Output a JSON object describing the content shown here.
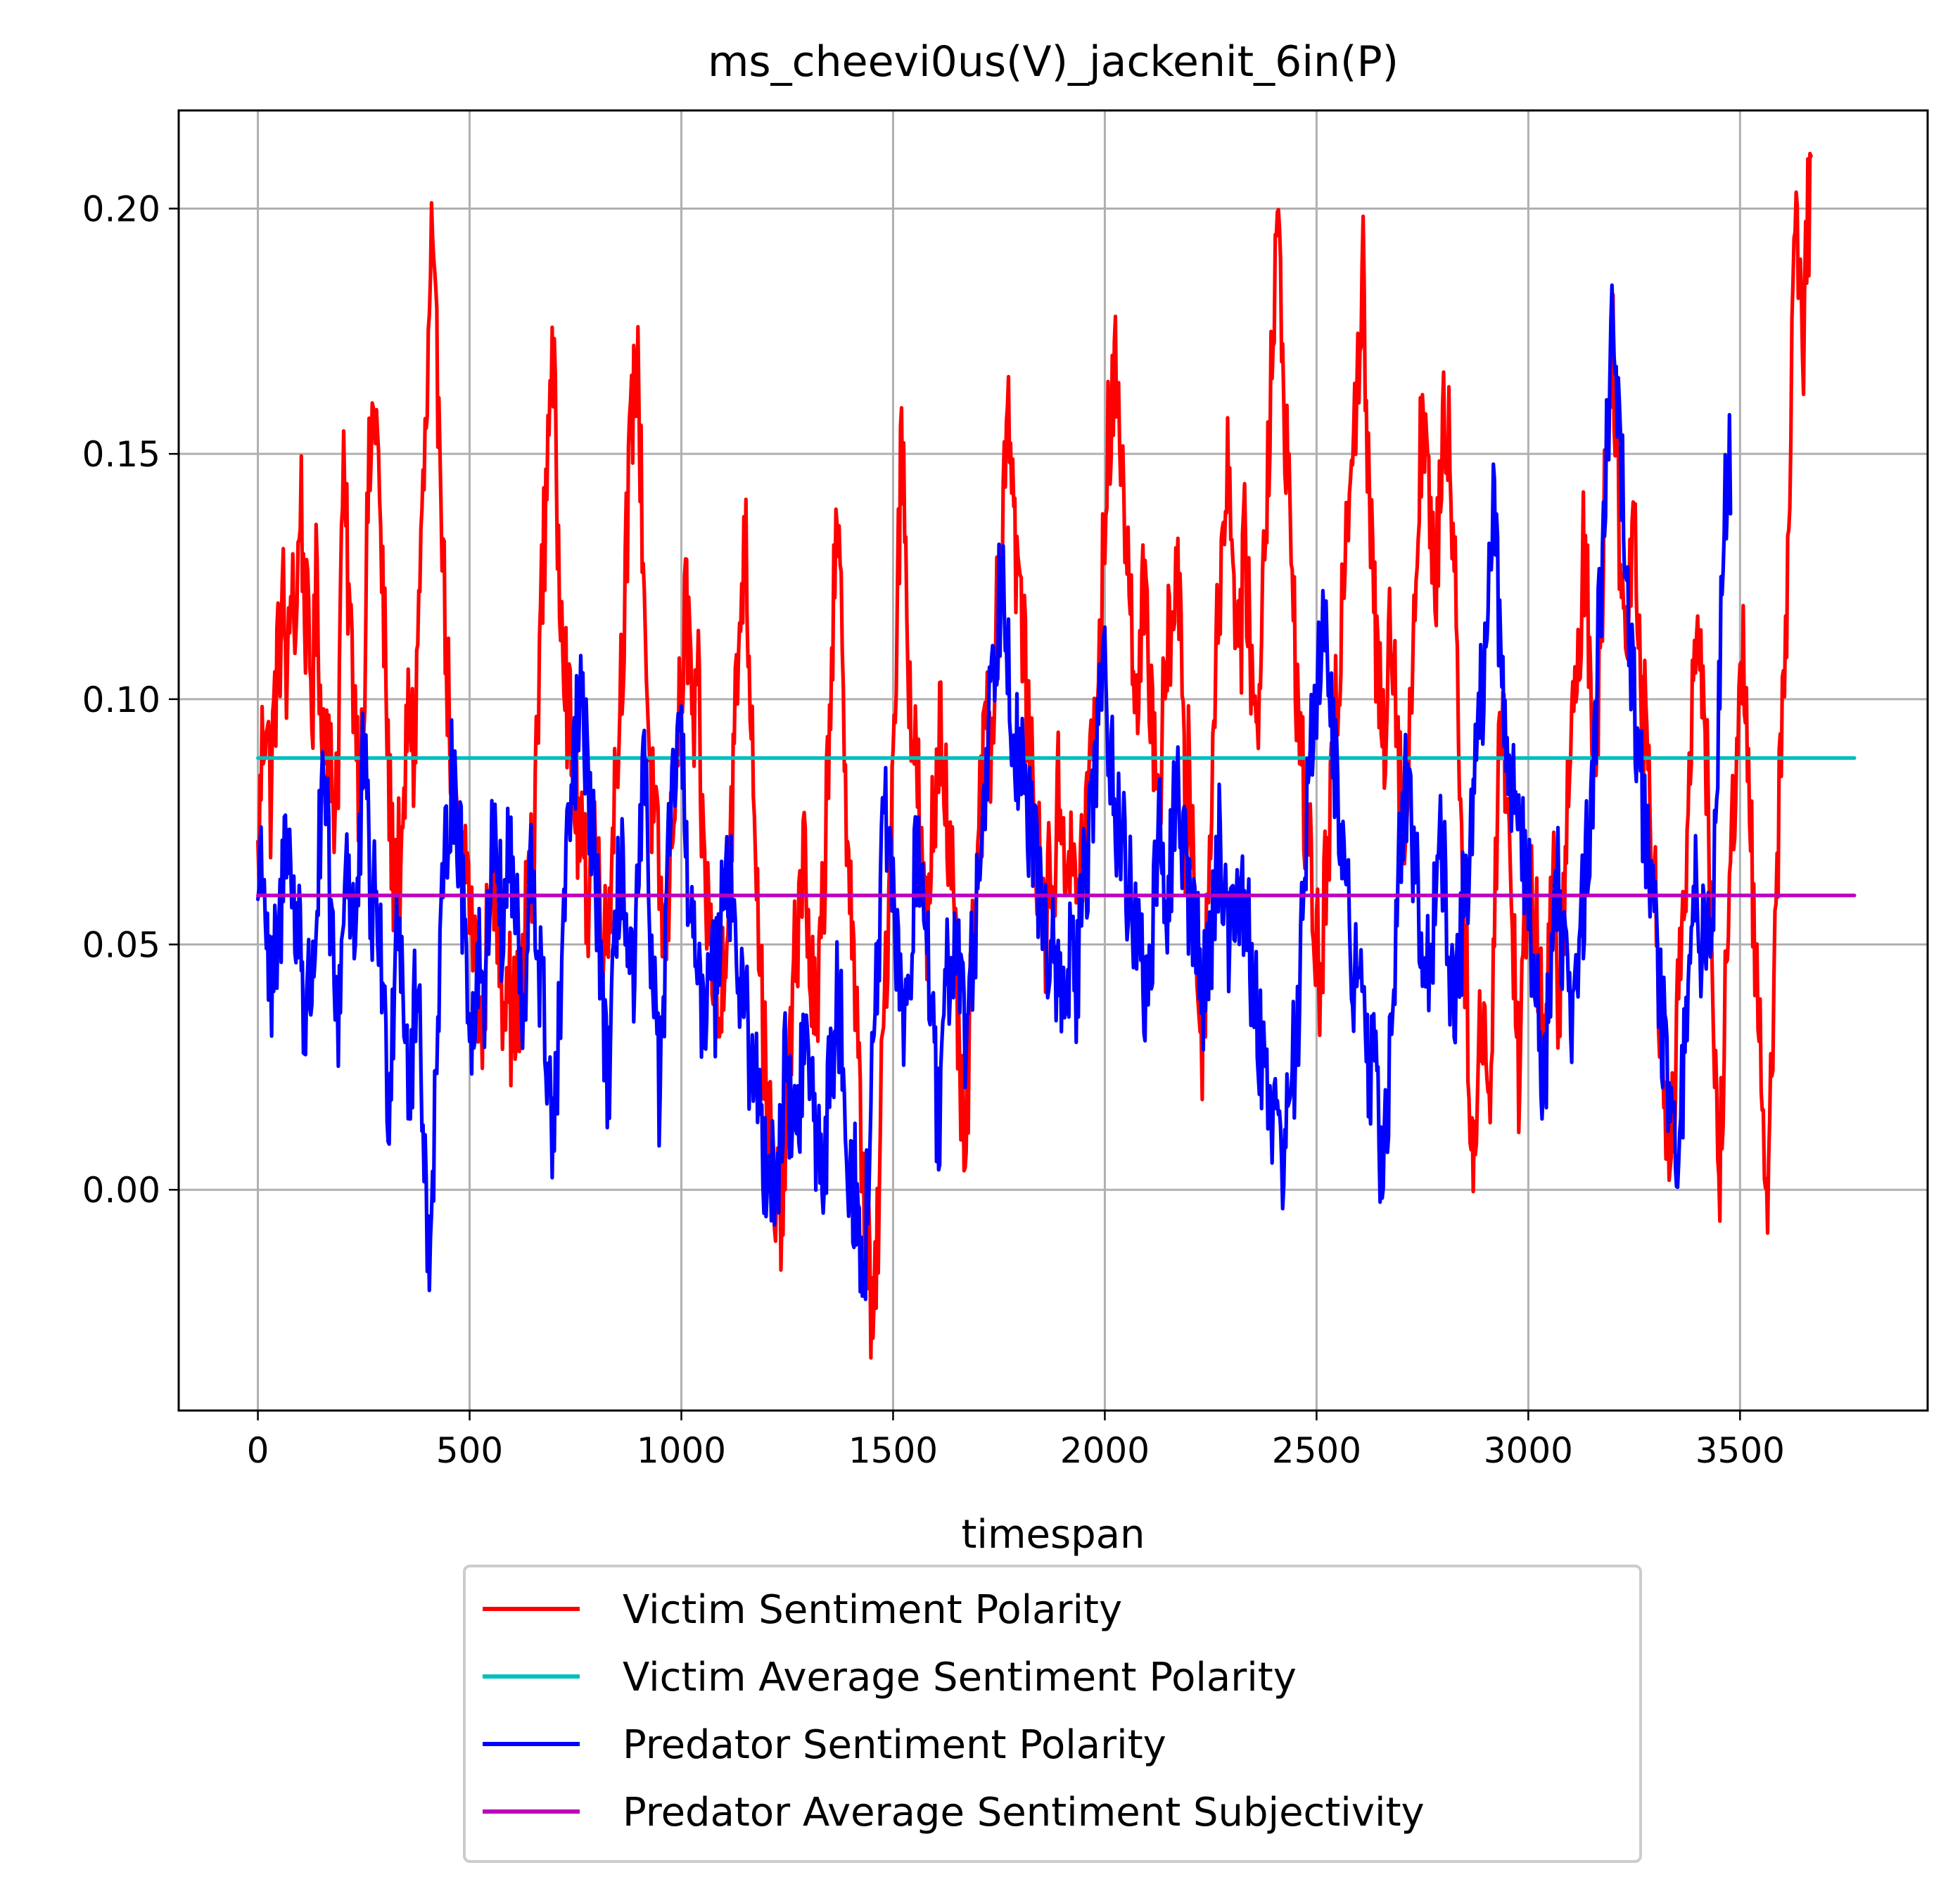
{
  "chart_data": {
    "type": "line",
    "title": "ms_cheevi0us(V)_jackenit_6in(P)",
    "xlabel": "timespan",
    "ylabel": "",
    "xlim": [
      -187,
      3943
    ],
    "ylim": [
      -0.045,
      0.22
    ],
    "xticks": [
      "0",
      "500",
      "1000",
      "1500",
      "2000",
      "2500",
      "3000",
      "3500"
    ],
    "xtick_values": [
      0,
      500,
      1000,
      1500,
      2000,
      2500,
      3000,
      3500
    ],
    "yticks": [
      "0.00",
      "0.05",
      "0.10",
      "0.15",
      "0.20"
    ],
    "ytick_values": [
      0.0,
      0.05,
      0.1,
      0.15,
      0.2
    ],
    "grid": true,
    "legend_position": "below-plot",
    "x_range_of_series": [
      0,
      3770
    ],
    "series": [
      {
        "name": "Victim Sentiment Polarity",
        "color": "#ff0000",
        "kind": "noisy",
        "x_step": 10,
        "y": [
          0.065,
          0.09,
          0.1,
          0.08,
          0.1,
          0.11,
          0.12,
          0.1,
          0.13,
          0.11,
          0.145,
          0.12,
          0.11,
          0.1,
          0.13,
          0.09,
          0.1,
          0.085,
          0.08,
          0.09,
          0.145,
          0.13,
          0.11,
          0.1,
          0.08,
          0.1,
          0.14,
          0.155,
          0.16,
          0.13,
          0.11,
          0.08,
          0.065,
          0.07,
          0.06,
          0.09,
          0.1,
          0.085,
          0.12,
          0.14,
          0.16,
          0.19,
          0.17,
          0.16,
          0.12,
          0.1,
          0.08,
          0.07,
          0.06,
          0.07,
          0.06,
          0.05,
          0.04,
          0.03,
          0.05,
          0.07,
          0.06,
          0.05,
          0.04,
          0.05,
          0.03,
          0.04,
          0.03,
          0.05,
          0.07,
          0.06,
          0.1,
          0.12,
          0.14,
          0.17,
          0.16,
          0.13,
          0.12,
          0.1,
          0.09,
          0.08,
          0.07,
          0.065,
          0.06,
          0.08,
          0.07,
          0.06,
          0.05,
          0.06,
          0.08,
          0.09,
          0.11,
          0.13,
          0.15,
          0.17,
          0.16,
          0.13,
          0.1,
          0.08,
          0.07,
          0.06,
          0.05,
          0.06,
          0.08,
          0.09,
          0.1,
          0.12,
          0.11,
          0.09,
          0.1,
          0.07,
          0.06,
          0.05,
          0.04,
          0.03,
          0.05,
          0.06,
          0.08,
          0.1,
          0.12,
          0.135,
          0.11,
          0.09,
          0.06,
          0.04,
          0.02,
          0.01,
          -0.01,
          0.0,
          -0.005,
          0.02,
          0.03,
          0.05,
          0.06,
          0.07,
          0.05,
          0.04,
          0.03,
          0.05,
          0.07,
          0.1,
          0.12,
          0.13,
          0.11,
          0.08,
          0.06,
          0.04,
          0.02,
          0.0,
          -0.01,
          -0.03,
          -0.02,
          0.01,
          0.04,
          0.06,
          0.09,
          0.12,
          0.155,
          0.13,
          0.1,
          0.09,
          0.08,
          0.06,
          0.05,
          0.07,
          0.08,
          0.1,
          0.09,
          0.07,
          0.06,
          0.04,
          0.02,
          0.0,
          0.03,
          0.05,
          0.07,
          0.08,
          0.1,
          0.09,
          0.11,
          0.12,
          0.14,
          0.165,
          0.15,
          0.13,
          0.12,
          0.11,
          0.09,
          0.08,
          0.07,
          0.06,
          0.05,
          0.07,
          0.06,
          0.08,
          0.075,
          0.07,
          0.065,
          0.06,
          0.065,
          0.07,
          0.08,
          0.09,
          0.1,
          0.11,
          0.14,
          0.155,
          0.16,
          0.17,
          0.15,
          0.13,
          0.12,
          0.11,
          0.1,
          0.12,
          0.11,
          0.1,
          0.09,
          0.08,
          0.1,
          0.11,
          0.12,
          0.13,
          0.11,
          0.07,
          0.09,
          0.06,
          0.04,
          0.03,
          0.05,
          0.08,
          0.1,
          0.12,
          0.14,
          0.15,
          0.13,
          0.12,
          0.11,
          0.13,
          0.12,
          0.1,
          0.09,
          0.12,
          0.14,
          0.16,
          0.18,
          0.195,
          0.17,
          0.15,
          0.13,
          0.11,
          0.09,
          0.08,
          0.07,
          0.06,
          0.05,
          0.04,
          0.06,
          0.07,
          0.09,
          0.1,
          0.12,
          0.14,
          0.15,
          0.16,
          0.17,
          0.185,
          0.15,
          0.13,
          0.11,
          0.1,
          0.09,
          0.12,
          0.11,
          0.1,
          0.08,
          0.07,
          0.09,
          0.12,
          0.14,
          0.16,
          0.15,
          0.13,
          0.12,
          0.14,
          0.16,
          0.155,
          0.14,
          0.12,
          0.08,
          0.05,
          0.03,
          0.0,
          0.02,
          0.04,
          0.03,
          0.01,
          0.06,
          0.09,
          0.1,
          0.08,
          0.06,
          0.04,
          0.02,
          0.05,
          0.07,
          0.06,
          0.05,
          0.04,
          0.03,
          0.05,
          0.06,
          0.04,
          0.05,
          0.07,
          0.09,
          0.1,
          0.11,
          0.13,
          0.12,
          0.1,
          0.09,
          0.11,
          0.14,
          0.16,
          0.175,
          0.15,
          0.12,
          0.11,
          0.13,
          0.14,
          0.12,
          0.1,
          0.09,
          0.08,
          0.06,
          0.04,
          0.02,
          0.005,
          0.01,
          0.03,
          0.05,
          0.06,
          0.08,
          0.1,
          0.12,
          0.11,
          0.09,
          0.06,
          0.03,
          0.0,
          0.02,
          0.05,
          0.07,
          0.09,
          0.1,
          0.11,
          0.09,
          0.06,
          0.04,
          0.02,
          -0.01,
          0.02,
          0.04,
          0.07,
          0.1,
          0.12,
          0.16,
          0.2,
          0.18,
          0.17,
          0.2
        ]
      },
      {
        "name": "Victim Average Sentiment Polarity",
        "color": "#00bfbf",
        "kind": "constant",
        "value": 0.088
      },
      {
        "name": "Predator Sentiment Polarity",
        "color": "#0000ff",
        "kind": "noisy",
        "x_step": 10,
        "y": [
          0.06,
          0.072,
          0.055,
          0.035,
          0.045,
          0.05,
          0.065,
          0.08,
          0.06,
          0.05,
          0.06,
          0.03,
          0.04,
          0.045,
          0.06,
          0.075,
          0.08,
          0.06,
          0.04,
          0.035,
          0.055,
          0.07,
          0.06,
          0.05,
          0.065,
          0.09,
          0.07,
          0.055,
          0.06,
          0.05,
          0.03,
          0.02,
          0.04,
          0.06,
          0.05,
          0.03,
          0.02,
          0.035,
          0.04,
          0.02,
          -0.015,
          0.0,
          0.02,
          0.045,
          0.06,
          0.08,
          0.085,
          0.075,
          0.065,
          0.05,
          0.04,
          0.03,
          0.05,
          0.045,
          0.04,
          0.07,
          0.08,
          0.06,
          0.05,
          0.07,
          0.065,
          0.055,
          0.04,
          0.03,
          0.06,
          0.065,
          0.05,
          0.04,
          0.03,
          0.02,
          0.01,
          0.03,
          0.05,
          0.065,
          0.08,
          0.09,
          0.1,
          0.09,
          0.085,
          0.07,
          0.06,
          0.05,
          0.03,
          0.02,
          0.04,
          0.06,
          0.07,
          0.05,
          0.04,
          0.045,
          0.06,
          0.085,
          0.07,
          0.05,
          0.03,
          0.02,
          0.04,
          0.065,
          0.08,
          0.095,
          0.085,
          0.075,
          0.06,
          0.05,
          0.04,
          0.03,
          0.045,
          0.05,
          0.04,
          0.055,
          0.07,
          0.065,
          0.06,
          0.05,
          0.04,
          0.035,
          0.03,
          0.025,
          0.02,
          0.01,
          0.005,
          0.01,
          0.0,
          0.005,
          0.02,
          0.025,
          0.015,
          0.01,
          0.02,
          0.03,
          0.025,
          0.02,
          0.01,
          0.005,
          0.01,
          0.02,
          0.03,
          0.04,
          0.03,
          0.01,
          0.005,
          0.0,
          -0.01,
          -0.02,
          0.0,
          0.02,
          0.04,
          0.06,
          0.075,
          0.065,
          0.055,
          0.05,
          0.04,
          0.035,
          0.045,
          0.06,
          0.07,
          0.065,
          0.05,
          0.035,
          0.02,
          0.01,
          0.03,
          0.045,
          0.05,
          0.055,
          0.04,
          0.03,
          0.04,
          0.05,
          0.06,
          0.075,
          0.09,
          0.1,
          0.11,
          0.12,
          0.13,
          0.115,
          0.1,
          0.09,
          0.085,
          0.08,
          0.075,
          0.07,
          0.065,
          0.06,
          0.055,
          0.05,
          0.045,
          0.04,
          0.035,
          0.045,
          0.05,
          0.04,
          0.05,
          0.06,
          0.07,
          0.08,
          0.09,
          0.1,
          0.105,
          0.095,
          0.085,
          0.075,
          0.07,
          0.065,
          0.06,
          0.055,
          0.05,
          0.045,
          0.04,
          0.05,
          0.06,
          0.07,
          0.065,
          0.06,
          0.07,
          0.085,
          0.075,
          0.065,
          0.06,
          0.055,
          0.05,
          0.04,
          0.045,
          0.05,
          0.06,
          0.07,
          0.065,
          0.055,
          0.05,
          0.06,
          0.065,
          0.06,
          0.05,
          0.04,
          0.035,
          0.03,
          0.025,
          0.02,
          0.015,
          0.01,
          0.01,
          0.015,
          0.02,
          0.03,
          0.04,
          0.06,
          0.08,
          0.095,
          0.105,
          0.115,
          0.11,
          0.1,
          0.09,
          0.08,
          0.07,
          0.06,
          0.05,
          0.045,
          0.04,
          0.035,
          0.03,
          0.025,
          0.02,
          0.01,
          0.005,
          0.02,
          0.04,
          0.06,
          0.07,
          0.08,
          0.075,
          0.065,
          0.06,
          0.055,
          0.05,
          0.04,
          0.06,
          0.075,
          0.065,
          0.05,
          0.045,
          0.04,
          0.05,
          0.06,
          0.07,
          0.08,
          0.09,
          0.1,
          0.115,
          0.125,
          0.14,
          0.12,
          0.1,
          0.09,
          0.085,
          0.08,
          0.075,
          0.07,
          0.06,
          0.05,
          0.04,
          0.03,
          0.02,
          0.04,
          0.06,
          0.065,
          0.05,
          0.045,
          0.04,
          0.035,
          0.05,
          0.06,
          0.07,
          0.08,
          0.1,
          0.12,
          0.14,
          0.16,
          0.185,
          0.165,
          0.15,
          0.13,
          0.115,
          0.1,
          0.09,
          0.08,
          0.07,
          0.06,
          0.05,
          0.04,
          0.03,
          0.02,
          0.01,
          0.0,
          0.015,
          0.03,
          0.05,
          0.07,
          0.06,
          0.05,
          0.045,
          0.055,
          0.07,
          0.1,
          0.13,
          0.145
        ]
      },
      {
        "name": "Predator Average Sentiment Subjectivity",
        "color": "#bf00bf",
        "kind": "constant",
        "value": 0.06
      }
    ]
  }
}
